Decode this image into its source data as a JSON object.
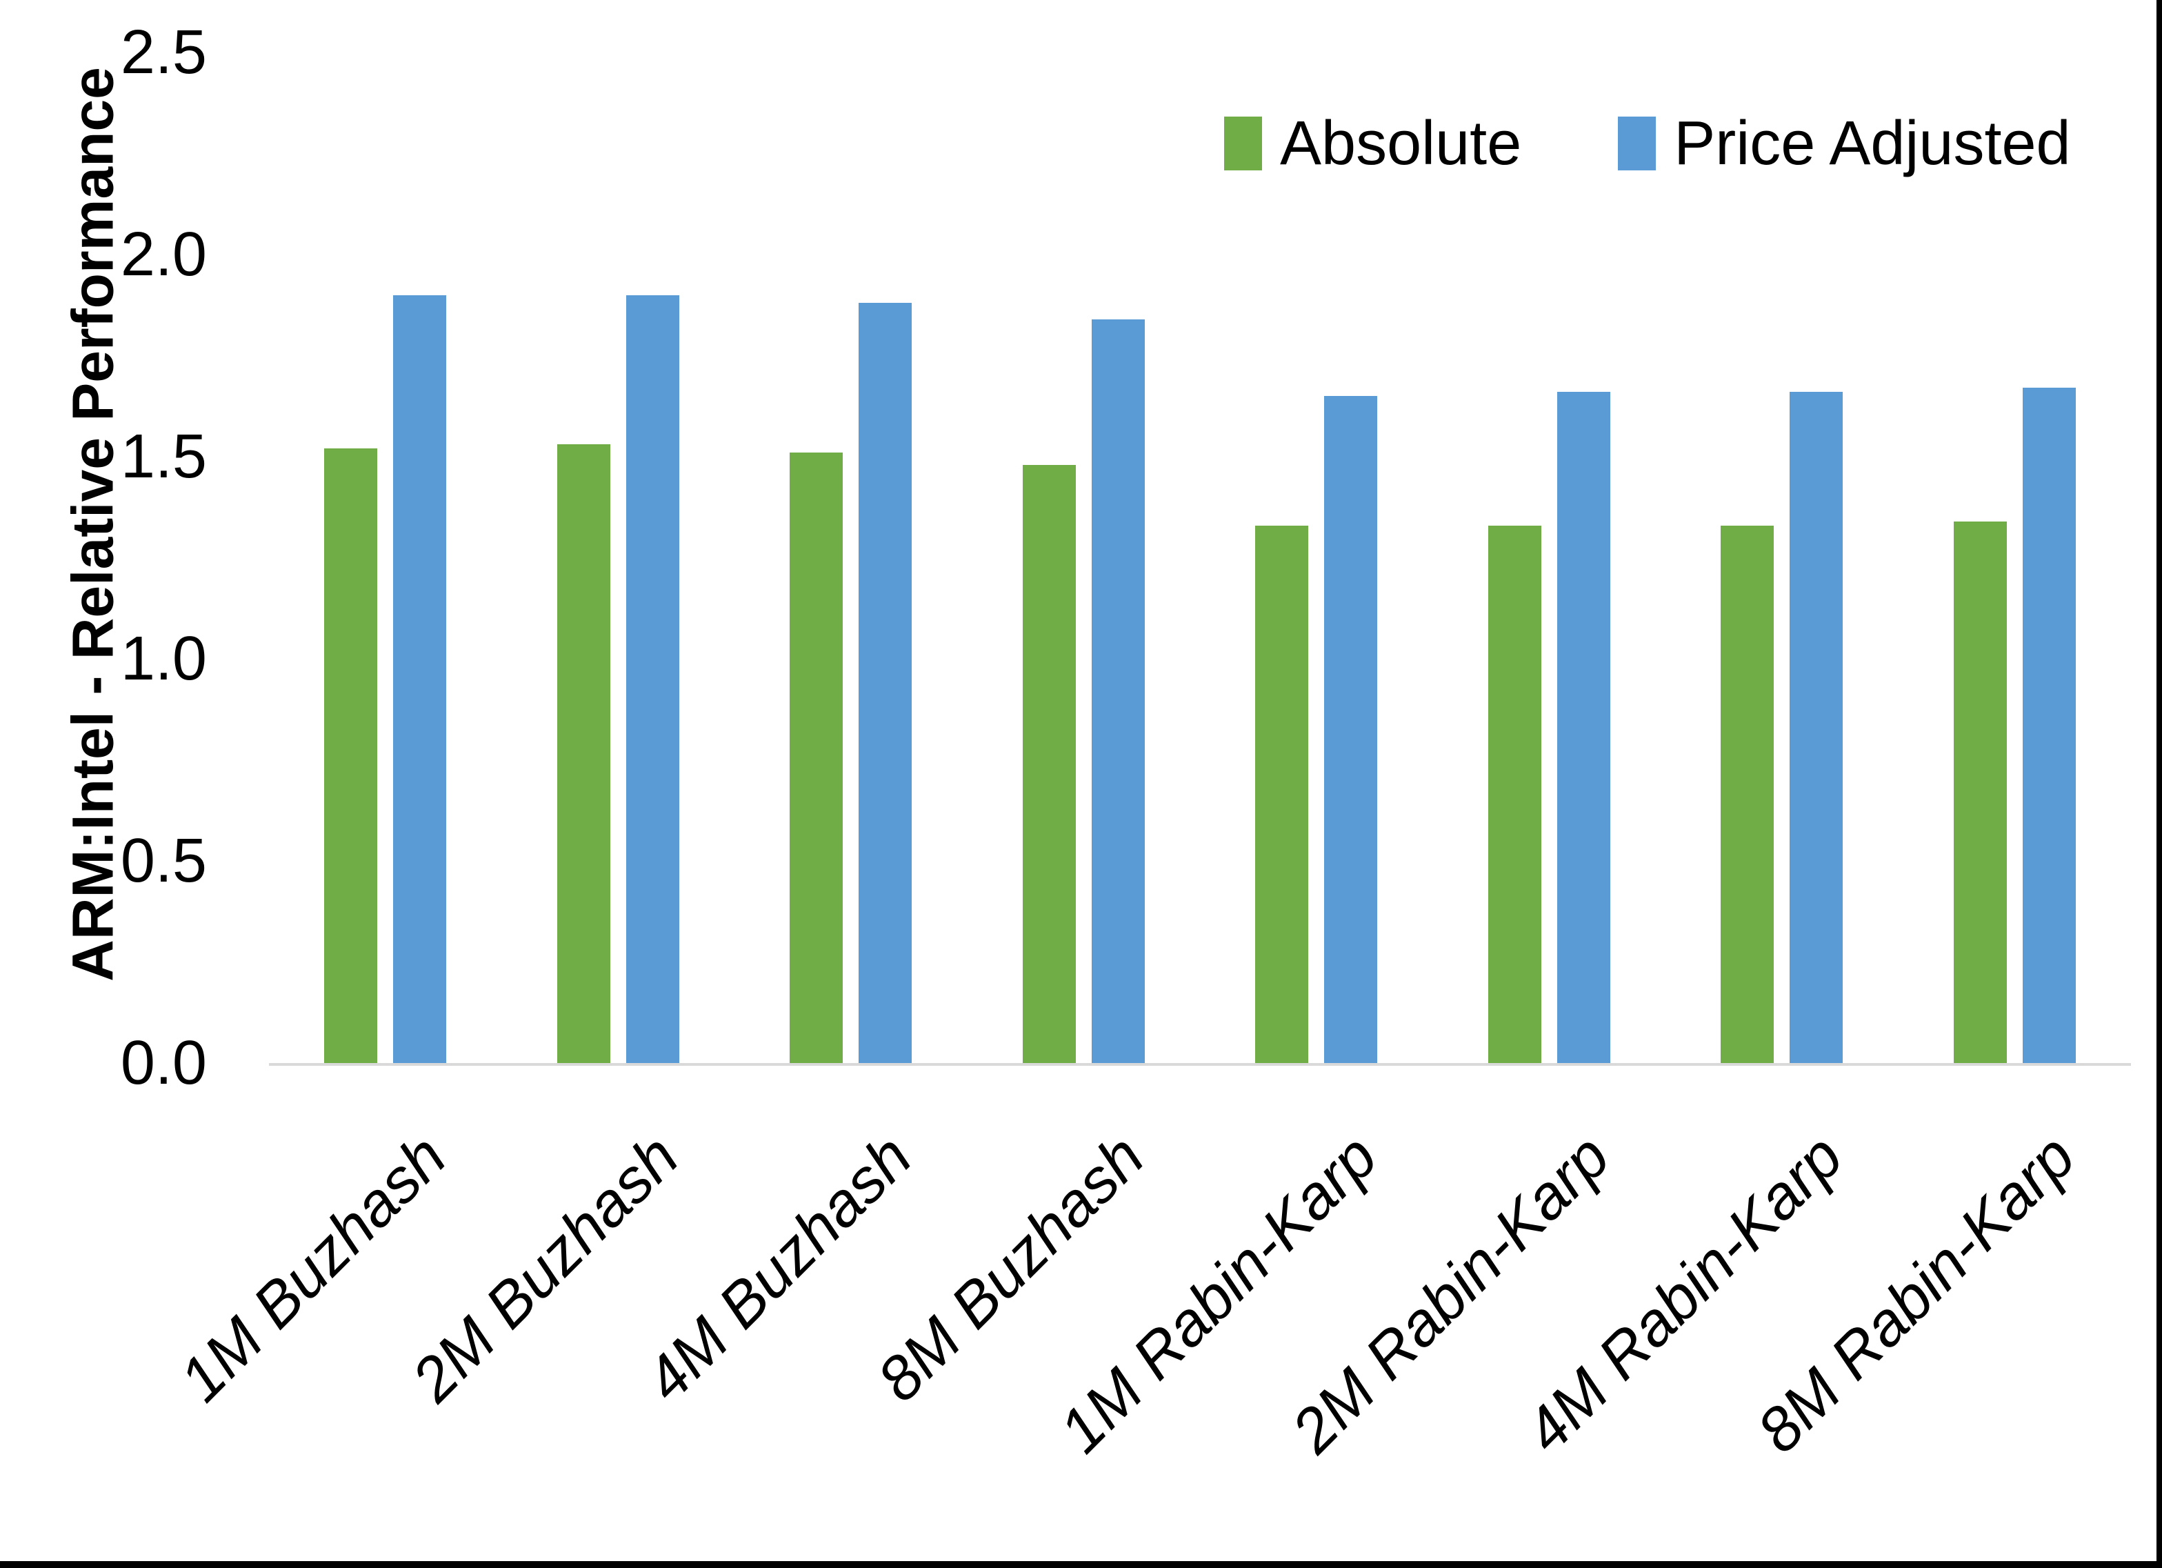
{
  "colors": {
    "background": "#FFFFFF",
    "axis_line": "#D9D9D9",
    "text": "#000000",
    "frame_border": "#000000",
    "series_absolute": "#70AD47",
    "series_price_adjusted": "#5B9BD5"
  },
  "chart_data": {
    "type": "bar",
    "title": "",
    "xlabel": "",
    "ylabel": "ARM:Intel - Relative Performance",
    "ylim": [
      0,
      2.5
    ],
    "ytick_labels": [
      "0.0",
      "0.5",
      "1.0",
      "1.5",
      "2.0",
      "2.5"
    ],
    "yticks": [
      0,
      0.5,
      1,
      1.5,
      2,
      2.5
    ],
    "grid": false,
    "legend_position": "top-right-inside",
    "categories": [
      "1M Buzhash",
      "2M Buzhash",
      "4M Buzhash",
      "8M Buzhash",
      "1M Rabin-Karp",
      "2M Rabin-Karp",
      "4M Rabin-Karp",
      "8M Rabin-Karp"
    ],
    "series": [
      {
        "name": "Absolute",
        "color": "#70AD47",
        "values": [
          1.52,
          1.53,
          1.51,
          1.48,
          1.33,
          1.33,
          1.33,
          1.34
        ]
      },
      {
        "name": "Price Adjusted",
        "color": "#5B9BD5",
        "values": [
          1.9,
          1.9,
          1.88,
          1.84,
          1.65,
          1.66,
          1.66,
          1.67
        ]
      }
    ]
  }
}
